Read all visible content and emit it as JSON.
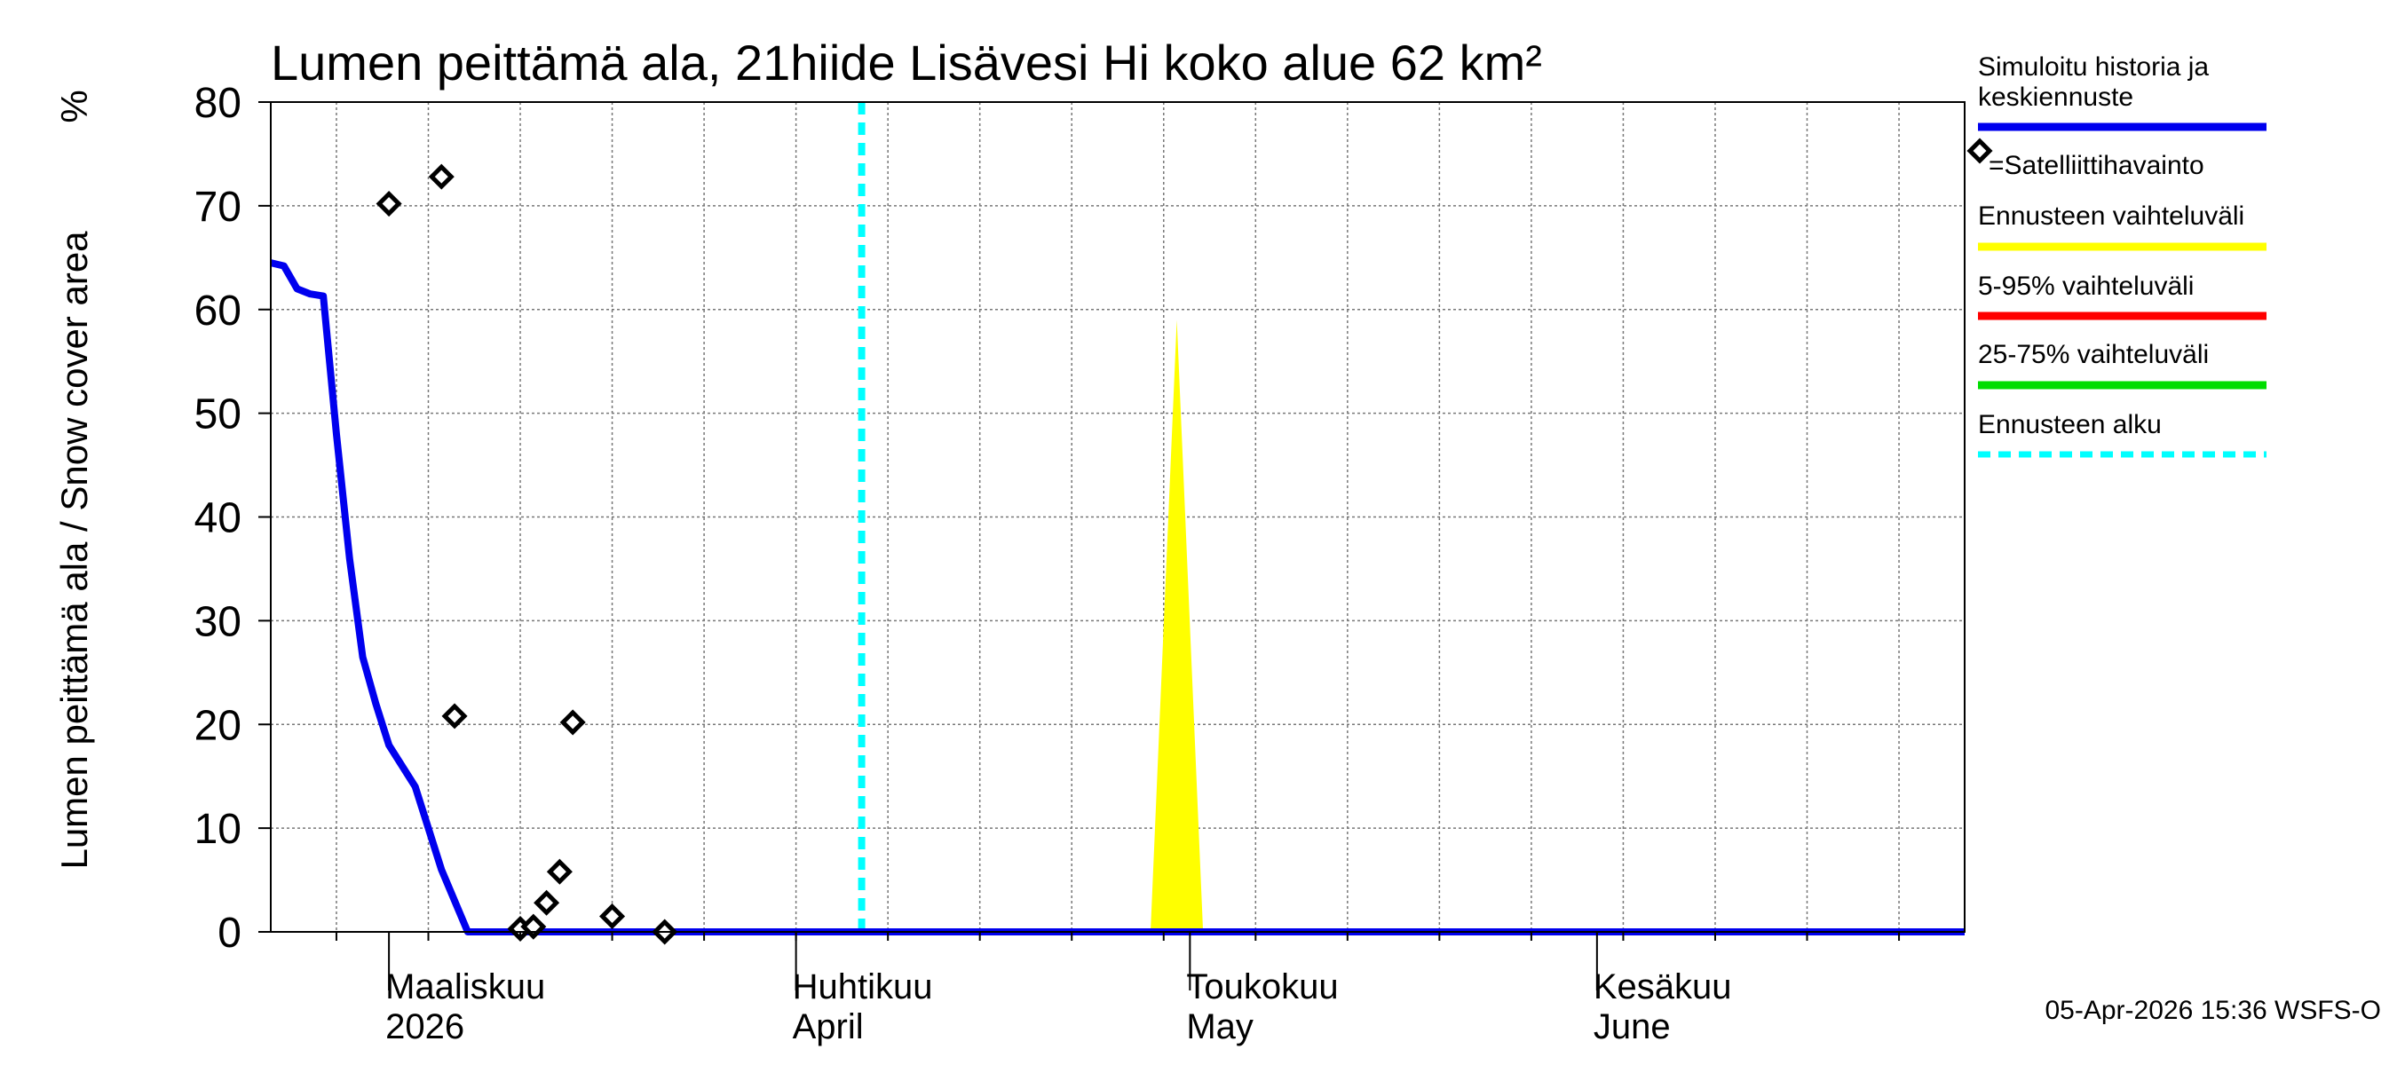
{
  "chart_data": {
    "type": "line",
    "title": "Lumen peittämä ala, 21hiide Lisävesi Hi koko alue 62 km²",
    "ylabel": "Lumen peittämä ala / Snow cover area",
    "yunit": "%",
    "ylim": [
      0,
      80
    ],
    "yticks": [
      0,
      10,
      20,
      30,
      40,
      50,
      60,
      70,
      80
    ],
    "xlim": [
      "2026-02-20",
      "2026-06-29"
    ],
    "grid": true,
    "months": [
      {
        "date": "2026-03-01",
        "fi": "Maaliskuu",
        "en": "2026"
      },
      {
        "date": "2026-04-01",
        "fi": "Huhtikuu",
        "en": "April"
      },
      {
        "date": "2026-05-01",
        "fi": "Toukokuu",
        "en": "May"
      },
      {
        "date": "2026-06-01",
        "fi": "Kesäkuu",
        "en": "June"
      }
    ],
    "forecast_start": "2026-04-06",
    "series": [
      {
        "name": "Simuloitu historia ja keskiennuste",
        "color": "#0000ee",
        "points": [
          [
            "2026-02-20",
            64.5
          ],
          [
            "2026-02-21",
            64.2
          ],
          [
            "2026-02-22",
            62.0
          ],
          [
            "2026-02-23",
            61.5
          ],
          [
            "2026-02-24",
            61.3
          ],
          [
            "2026-02-25",
            48.0
          ],
          [
            "2026-02-26",
            36.0
          ],
          [
            "2026-02-27",
            26.5
          ],
          [
            "2026-02-28",
            22.0
          ],
          [
            "2026-03-01",
            18.0
          ],
          [
            "2026-03-02",
            16.0
          ],
          [
            "2026-03-03",
            14.0
          ],
          [
            "2026-03-04",
            10.0
          ],
          [
            "2026-03-05",
            6.0
          ],
          [
            "2026-03-06",
            3.0
          ],
          [
            "2026-03-07",
            0
          ],
          [
            "2026-06-29",
            0
          ]
        ]
      },
      {
        "name": "=Satelliittihavainto",
        "color": "#000000",
        "points": [
          [
            "2026-03-01",
            70.2
          ],
          [
            "2026-03-05",
            72.8
          ],
          [
            "2026-03-06",
            20.8
          ],
          [
            "2026-03-11",
            0.3
          ],
          [
            "2026-03-12",
            0.5
          ],
          [
            "2026-03-13",
            2.8
          ],
          [
            "2026-03-14",
            5.8
          ],
          [
            "2026-03-15",
            20.2
          ],
          [
            "2026-03-18",
            1.5
          ],
          [
            "2026-03-22",
            0
          ]
        ]
      },
      {
        "name": "Ennusteen vaihteluväli",
        "color": "#ffff00",
        "band": [
          [
            "2026-04-28",
            0,
            0
          ],
          [
            "2026-04-30",
            0,
            59.0
          ],
          [
            "2026-05-02",
            0,
            0
          ]
        ]
      }
    ],
    "legend": {
      "position": "right",
      "items": [
        {
          "label": "Simuloitu historia ja keskiennuste",
          "color": "#0000ee",
          "style": "line"
        },
        {
          "label": "=Satelliittihavainto",
          "color": "#000000",
          "style": "diamond"
        },
        {
          "label": "Ennusteen vaihteluväli",
          "color": "#ffff00",
          "style": "line"
        },
        {
          "label": "5-95% vaihteluväli",
          "color": "#ff0000",
          "style": "line"
        },
        {
          "label": "25-75% vaihteluväli",
          "color": "#00dd00",
          "style": "line"
        },
        {
          "label": "Ennusteen alku",
          "color": "#00ffff",
          "style": "dashed"
        }
      ]
    },
    "footer": "05-Apr-2026 15:36 WSFS-O"
  }
}
